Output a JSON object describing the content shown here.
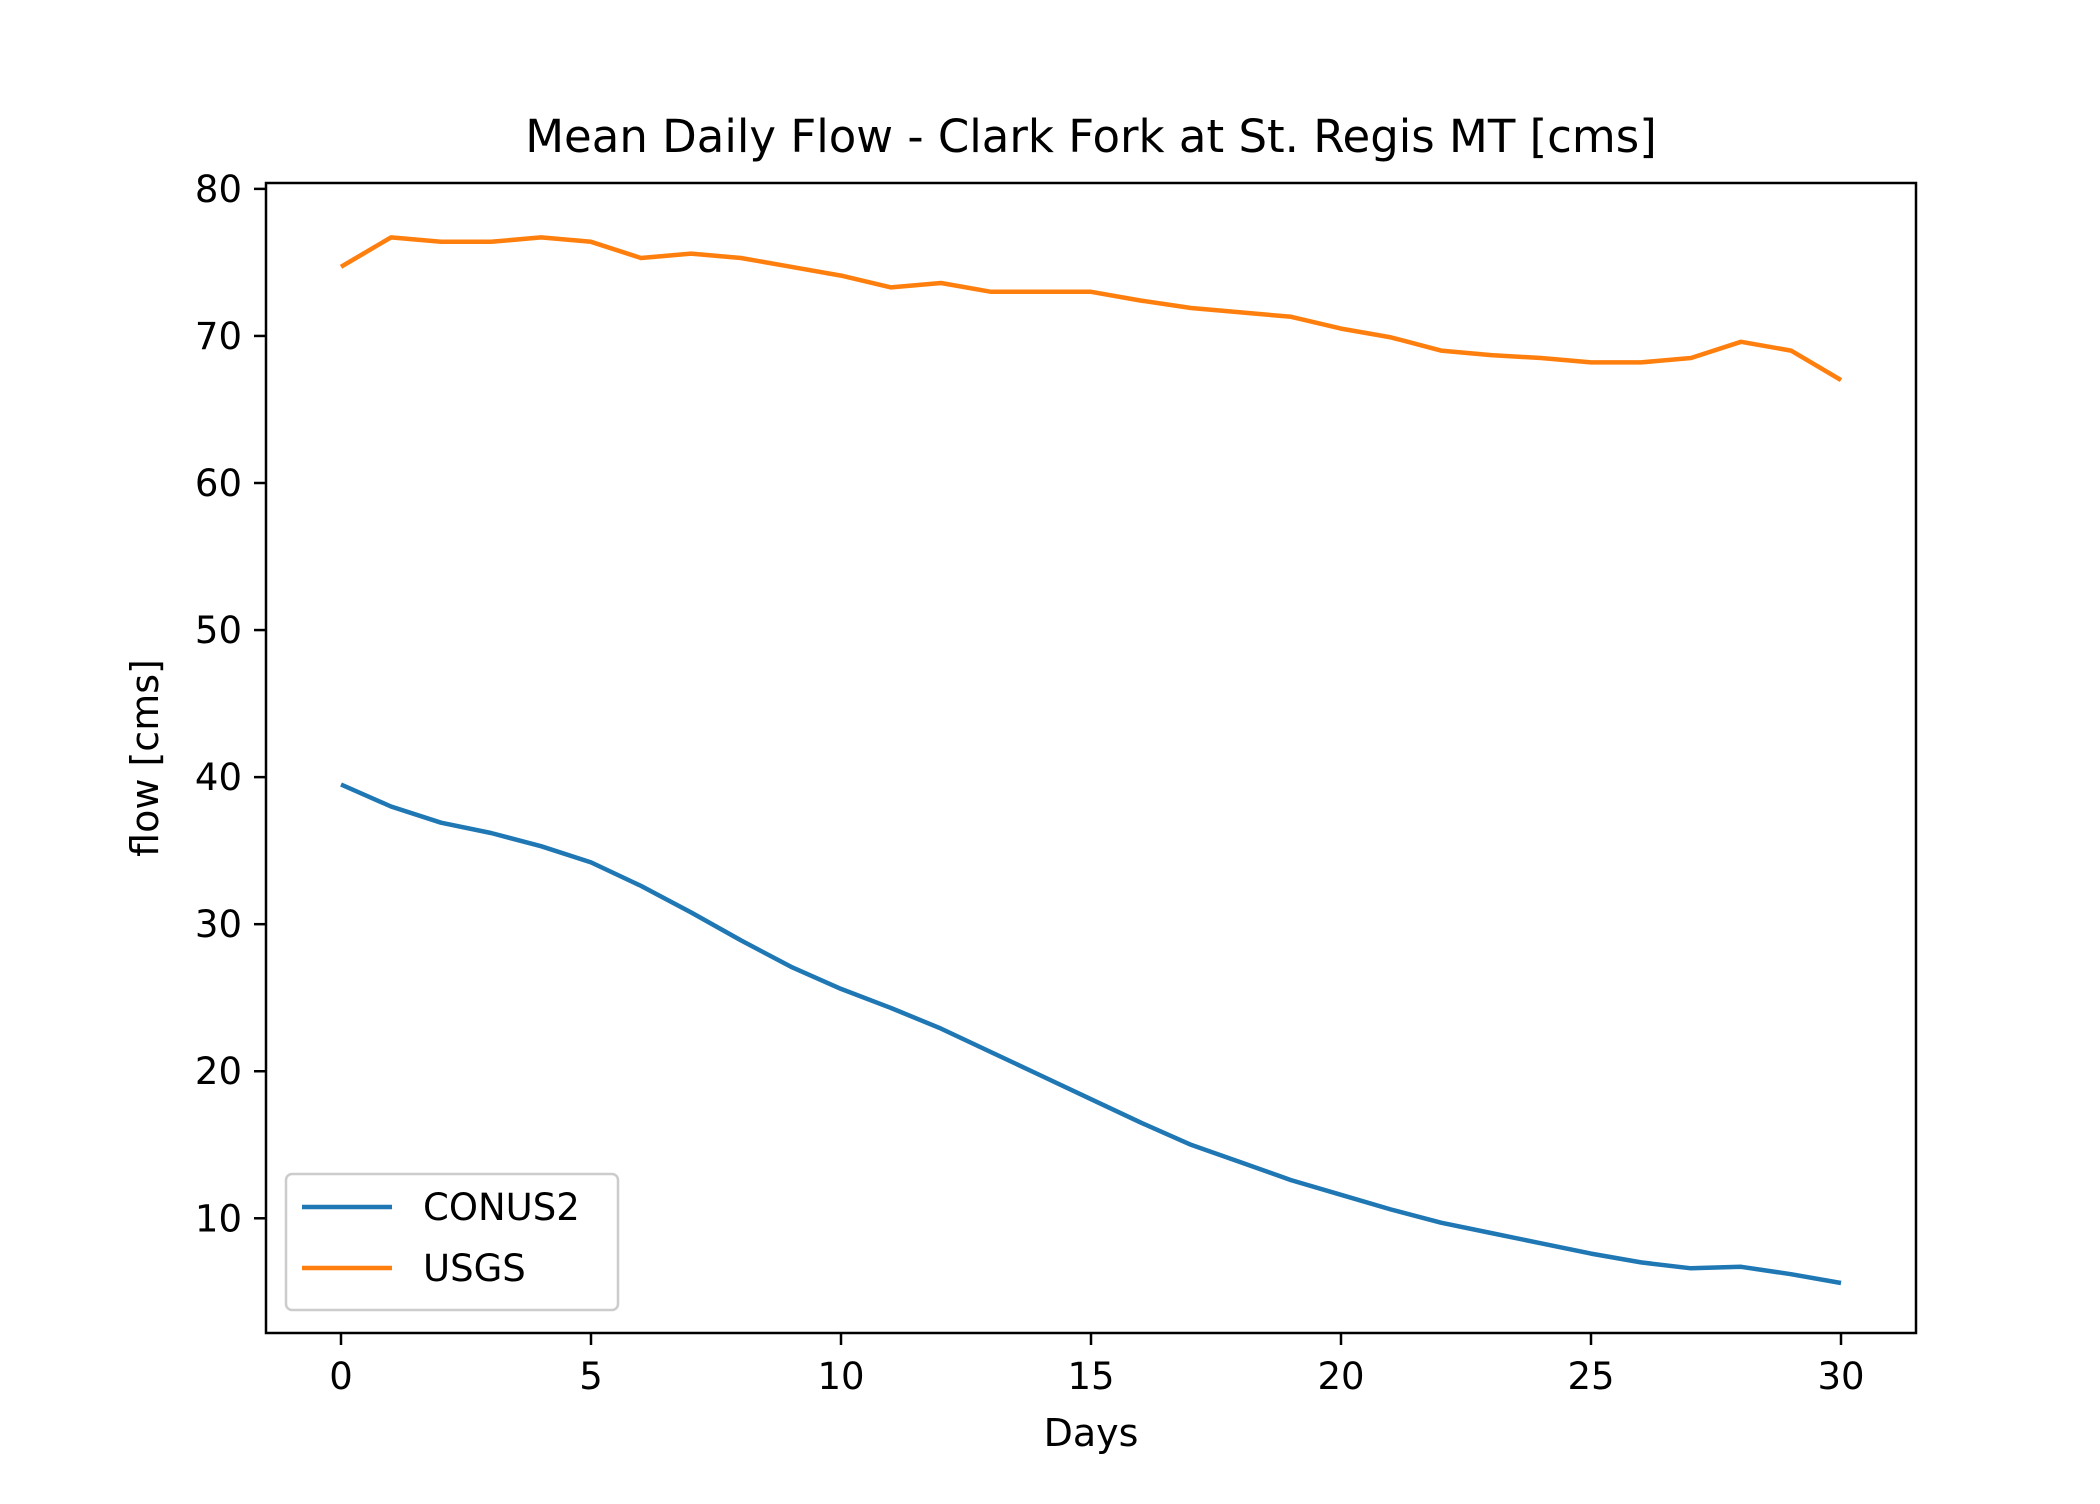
{
  "chart_data": {
    "type": "line",
    "title": "Mean Daily Flow - Clark Fork at St. Regis MT [cms]",
    "xlabel": "Days",
    "ylabel": "flow [cms]",
    "xlim": [
      -1.5,
      31.5
    ],
    "ylim": [
      2.2,
      80.4
    ],
    "xticks": [
      0,
      5,
      10,
      15,
      20,
      25,
      30
    ],
    "yticks": [
      10,
      20,
      30,
      40,
      50,
      60,
      70,
      80
    ],
    "grid": false,
    "legend_position": "lower left",
    "x": [
      0,
      1,
      2,
      3,
      4,
      5,
      6,
      7,
      8,
      9,
      10,
      11,
      12,
      13,
      14,
      15,
      16,
      17,
      18,
      19,
      20,
      21,
      22,
      23,
      24,
      25,
      26,
      27,
      28,
      29,
      30
    ],
    "series": [
      {
        "name": "CONUS2",
        "color": "#1f77b4",
        "values": [
          39.5,
          38.0,
          36.9,
          36.2,
          35.3,
          34.2,
          32.6,
          30.8,
          28.9,
          27.1,
          25.6,
          24.3,
          22.9,
          21.3,
          19.7,
          18.1,
          16.5,
          15.0,
          13.8,
          12.6,
          11.6,
          10.6,
          9.7,
          9.0,
          8.3,
          7.6,
          7.0,
          6.6,
          6.7,
          6.2,
          5.6
        ]
      },
      {
        "name": "USGS",
        "color": "#ff7f0e",
        "values": [
          74.7,
          76.7,
          76.4,
          76.4,
          76.7,
          76.4,
          75.3,
          75.6,
          75.3,
          74.7,
          74.1,
          73.3,
          73.6,
          73.0,
          73.0,
          73.0,
          72.4,
          71.9,
          71.6,
          71.3,
          70.5,
          69.9,
          69.0,
          68.7,
          68.5,
          68.2,
          68.2,
          68.5,
          69.6,
          69.0,
          67.0
        ]
      }
    ]
  }
}
